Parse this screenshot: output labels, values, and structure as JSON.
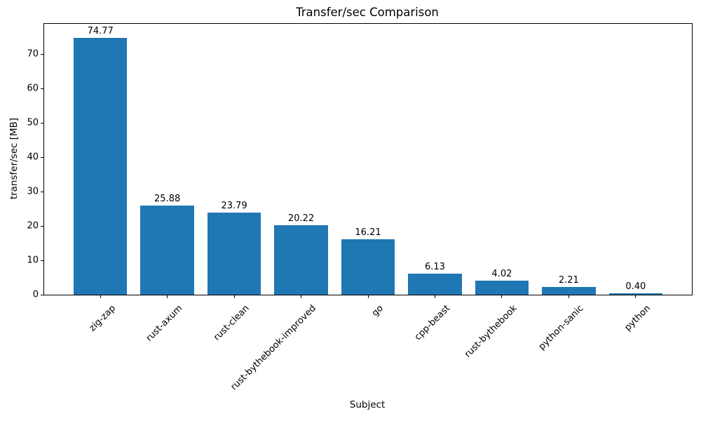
{
  "chart_data": {
    "type": "bar",
    "title": "Transfer/sec Comparison",
    "xlabel": "Subject",
    "ylabel": "transfer/sec [MB]",
    "categories": [
      "zig-zap",
      "rust-axum",
      "rust-clean",
      "rust-bythebook-improved",
      "go",
      "cpp-beast",
      "rust-bythebook",
      "python-sanic",
      "python"
    ],
    "values": [
      74.77,
      25.88,
      23.79,
      20.22,
      16.21,
      6.13,
      4.02,
      2.21,
      0.4
    ],
    "value_labels": [
      "74.77",
      "25.88",
      "23.79",
      "20.22",
      "16.21",
      "6.13",
      "4.02",
      "2.21",
      "0.40"
    ],
    "yticks": [
      0,
      10,
      20,
      30,
      40,
      50,
      60,
      70
    ],
    "ylim": [
      0,
      78.8
    ],
    "bar_color": "#1f77b4",
    "axis_color": "#000000",
    "grid": false,
    "legend_position": "none",
    "x_tick_rotation_deg": 45
  }
}
